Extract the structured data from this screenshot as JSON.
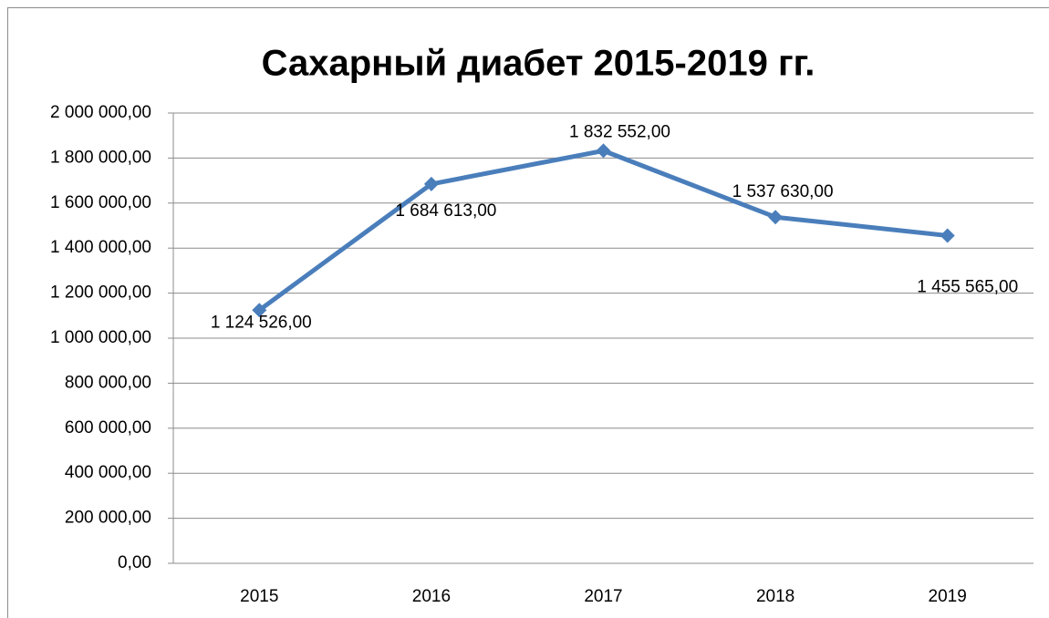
{
  "chart_data": {
    "type": "line",
    "title": "Сахарный диабет 2015-2019 гг.",
    "categories": [
      "2015",
      "2016",
      "2017",
      "2018",
      "2019"
    ],
    "series": [
      {
        "name": "Сахарный диабет",
        "color": "#4a7ebb",
        "values": [
          1124526,
          1684613,
          1832552,
          1537630,
          1455565
        ],
        "value_labels": [
          "1 124 526,00",
          "1 684 613,00",
          "1 832 552,00",
          "1 537 630,00",
          "1 455 565,00"
        ]
      }
    ],
    "ylim": [
      0,
      2000000
    ],
    "yticks": [
      {
        "value": 0,
        "label": "0,00"
      },
      {
        "value": 200000,
        "label": "200 000,00"
      },
      {
        "value": 400000,
        "label": "400 000,00"
      },
      {
        "value": 600000,
        "label": "600 000,00"
      },
      {
        "value": 800000,
        "label": "800 000,00"
      },
      {
        "value": 1000000,
        "label": "1 000 000,00"
      },
      {
        "value": 1200000,
        "label": "1 200 000,00"
      },
      {
        "value": 1400000,
        "label": "1 400 000,00"
      },
      {
        "value": 1600000,
        "label": "1 600 000,00"
      },
      {
        "value": 1800000,
        "label": "1 800 000,00"
      },
      {
        "value": 2000000,
        "label": "2 000 000,00"
      }
    ],
    "grid": true
  }
}
